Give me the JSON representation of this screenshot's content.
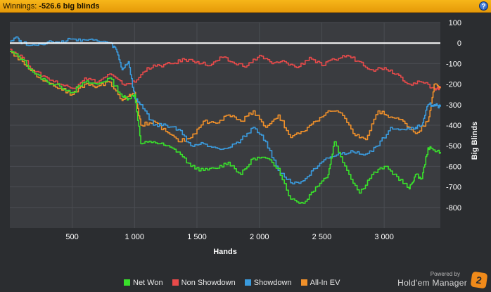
{
  "header": {
    "label": "Winnings:",
    "value": "-526.6 big blinds",
    "help_icon": "?"
  },
  "chart_data": {
    "type": "line",
    "xlabel": "Hands",
    "ylabel": "Big Blinds",
    "xlim": [
      1,
      3450
    ],
    "ylim": [
      -900,
      100
    ],
    "x_ticks": [
      "500",
      "1 000",
      "1 500",
      "2 000",
      "2 500",
      "3 000"
    ],
    "x_tick_values": [
      500,
      1000,
      1500,
      2000,
      2500,
      3000
    ],
    "y_ticks": [
      "100",
      "0",
      "-100",
      "-200",
      "-300",
      "-400",
      "-500",
      "-600",
      "-700",
      "-800"
    ],
    "y_tick_values": [
      100,
      0,
      -100,
      -200,
      -300,
      -400,
      -500,
      -600,
      -700,
      -800
    ],
    "grid": true,
    "legend_position": "bottom",
    "series": [
      {
        "name": "Net Won",
        "color": "#39e02b",
        "x": [
          1,
          100,
          200,
          300,
          400,
          500,
          600,
          700,
          800,
          900,
          950,
          1000,
          1050,
          1150,
          1250,
          1350,
          1450,
          1550,
          1650,
          1750,
          1850,
          1950,
          2050,
          2150,
          2250,
          2350,
          2450,
          2550,
          2600,
          2700,
          2800,
          2900,
          3000,
          3100,
          3200,
          3250,
          3300,
          3350,
          3400,
          3450
        ],
        "y": [
          -40,
          -80,
          -150,
          -190,
          -210,
          -240,
          -190,
          -200,
          -170,
          -260,
          -270,
          -250,
          -490,
          -480,
          -500,
          -530,
          -600,
          -620,
          -610,
          -580,
          -640,
          -560,
          -560,
          -610,
          -760,
          -780,
          -700,
          -640,
          -480,
          -620,
          -730,
          -640,
          -600,
          -650,
          -710,
          -640,
          -660,
          -510,
          -520,
          -530
        ]
      },
      {
        "name": "Non Showdown",
        "color": "#e84a4a",
        "x": [
          1,
          100,
          200,
          300,
          400,
          500,
          600,
          700,
          800,
          900,
          1000,
          1100,
          1200,
          1300,
          1400,
          1500,
          1600,
          1700,
          1800,
          1900,
          2000,
          2100,
          2200,
          2300,
          2400,
          2500,
          2600,
          2700,
          2800,
          2900,
          3000,
          3100,
          3200,
          3300,
          3400,
          3450
        ],
        "y": [
          -30,
          -70,
          -140,
          -170,
          -200,
          -220,
          -170,
          -190,
          -150,
          -200,
          -190,
          -120,
          -110,
          -100,
          -80,
          -90,
          -110,
          -70,
          -100,
          -110,
          -60,
          -100,
          -90,
          -120,
          -70,
          -110,
          -80,
          -60,
          -90,
          -130,
          -120,
          -150,
          -200,
          -190,
          -220,
          -220
        ]
      },
      {
        "name": "Showdown",
        "color": "#3a9bde",
        "x": [
          1,
          50,
          100,
          200,
          300,
          400,
          500,
          600,
          700,
          800,
          850,
          900,
          950,
          1000,
          1050,
          1150,
          1250,
          1350,
          1450,
          1550,
          1650,
          1750,
          1850,
          1950,
          2050,
          2150,
          2250,
          2350,
          2450,
          2550,
          2650,
          2750,
          2850,
          2950,
          3050,
          3150,
          3250,
          3300,
          3350,
          3400,
          3450
        ],
        "y": [
          10,
          30,
          0,
          -10,
          5,
          0,
          20,
          15,
          10,
          0,
          -30,
          -130,
          -90,
          -270,
          -300,
          -400,
          -400,
          -420,
          -500,
          -490,
          -510,
          -510,
          -470,
          -410,
          -480,
          -620,
          -680,
          -670,
          -610,
          -560,
          -540,
          -530,
          -540,
          -500,
          -410,
          -420,
          -410,
          -400,
          -300,
          -300,
          -310
        ]
      },
      {
        "name": "All-In EV",
        "color": "#f0902a",
        "x": [
          1,
          100,
          200,
          300,
          400,
          500,
          600,
          700,
          800,
          900,
          950,
          1000,
          1050,
          1150,
          1250,
          1350,
          1450,
          1550,
          1650,
          1750,
          1850,
          1950,
          2050,
          2150,
          2250,
          2350,
          2450,
          2550,
          2650,
          2750,
          2850,
          2950,
          3050,
          3150,
          3250,
          3350,
          3400,
          3450
        ],
        "y": [
          -40,
          -90,
          -150,
          -190,
          -220,
          -250,
          -200,
          -210,
          -190,
          -280,
          -260,
          -240,
          -400,
          -380,
          -430,
          -480,
          -460,
          -380,
          -390,
          -350,
          -380,
          -330,
          -410,
          -350,
          -460,
          -430,
          -380,
          -330,
          -340,
          -440,
          -470,
          -330,
          -360,
          -380,
          -440,
          -380,
          -200,
          -220
        ]
      }
    ]
  },
  "legend": {
    "items": [
      {
        "label": "Net Won",
        "color": "#39e02b"
      },
      {
        "label": "Non Showdown",
        "color": "#e84a4a"
      },
      {
        "label": "Showdown",
        "color": "#3a9bde"
      },
      {
        "label": "All-In EV",
        "color": "#f0902a"
      }
    ]
  },
  "brand": {
    "powered_by": "Powered by",
    "name": "Hold'em Manager",
    "badge": "2"
  }
}
